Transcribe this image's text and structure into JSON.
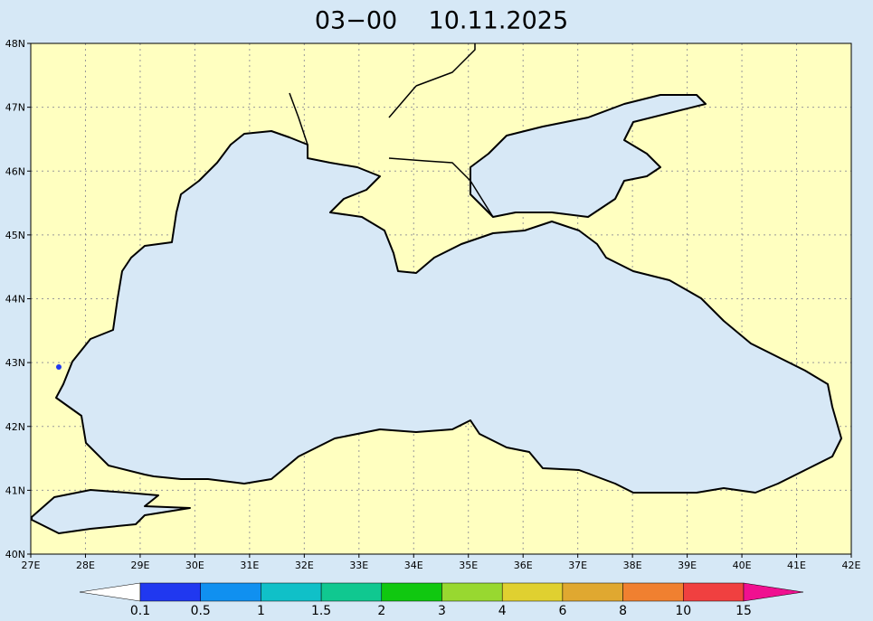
{
  "map": {
    "title": "03−00    10.11.2025",
    "lonlim": [
      27,
      42
    ],
    "latlim": [
      40,
      48
    ],
    "lon_ticks": [
      {
        "value": 27,
        "label": "27E"
      },
      {
        "value": 28,
        "label": "28E"
      },
      {
        "value": 29,
        "label": "29E"
      },
      {
        "value": 30,
        "label": "30E"
      },
      {
        "value": 31,
        "label": "31E"
      },
      {
        "value": 32,
        "label": "32E"
      },
      {
        "value": 33,
        "label": "33E"
      },
      {
        "value": 34,
        "label": "34E"
      },
      {
        "value": 35,
        "label": "35E"
      },
      {
        "value": 36,
        "label": "36E"
      },
      {
        "value": 37,
        "label": "37E"
      },
      {
        "value": 38,
        "label": "38E"
      },
      {
        "value": 39,
        "label": "39E"
      },
      {
        "value": 40,
        "label": "40E"
      },
      {
        "value": 41,
        "label": "41E"
      },
      {
        "value": 42,
        "label": "42E"
      }
    ],
    "lat_ticks": [
      {
        "value": 40,
        "label": "40N"
      },
      {
        "value": 41,
        "label": "41N"
      },
      {
        "value": 42,
        "label": "42N"
      },
      {
        "value": 43,
        "label": "43N"
      },
      {
        "value": 44,
        "label": "44N"
      },
      {
        "value": 45,
        "label": "45N"
      },
      {
        "value": 46,
        "label": "46N"
      },
      {
        "value": 47,
        "label": "47N"
      },
      {
        "value": 48,
        "label": "48N"
      }
    ],
    "grid": true
  },
  "colorbar": {
    "levels": [
      0.1,
      0.5,
      1,
      1.5,
      2,
      3,
      4,
      6,
      8,
      10,
      15
    ],
    "colors": [
      "#2038f0",
      "#1090f0",
      "#10c0c8",
      "#10c890",
      "#10c810",
      "#98d830",
      "#e0d030",
      "#e0a830",
      "#f08030",
      "#f04040"
    ],
    "under_color": "#ffffff",
    "over_color": "#f01090"
  }
}
